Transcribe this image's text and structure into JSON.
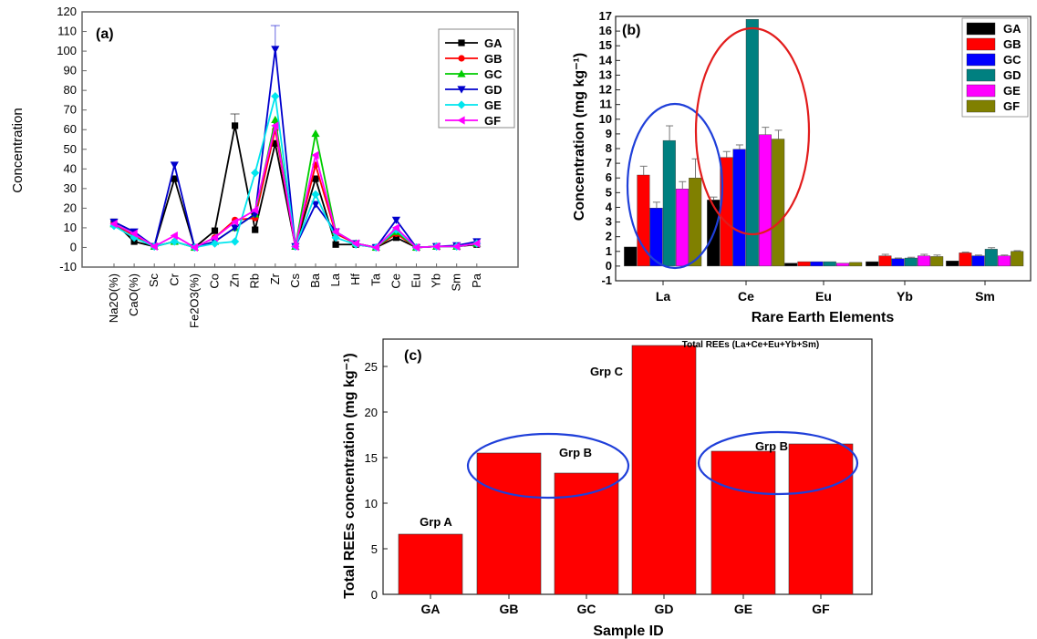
{
  "chart_data": [
    {
      "panel": "(a)",
      "type": "line",
      "title": "",
      "xlabel": "",
      "ylabel": "Concentration",
      "ylim": [
        -10,
        120
      ],
      "yticks": [
        -10,
        0,
        10,
        20,
        30,
        40,
        50,
        60,
        70,
        80,
        90,
        100,
        110,
        120
      ],
      "categories": [
        "Na2O(%)",
        "CaO(%)",
        "Sc",
        "Cr",
        "Fe2O3(%)",
        "Co",
        "Zn",
        "Rb",
        "Zr",
        "Cs",
        "Ba",
        "La",
        "Hf",
        "Ta",
        "Ce",
        "Eu",
        "Yb",
        "Sm",
        "Pa"
      ],
      "legend_position": "top-right",
      "series": [
        {
          "name": "GA",
          "color": "#000000",
          "marker": "square",
          "values": [
            13,
            3,
            0.5,
            35,
            0,
            8.5,
            62,
            9,
            53,
            0.5,
            35,
            1.5,
            1.5,
            0,
            5,
            0,
            0.5,
            0.5,
            1.5
          ]
        },
        {
          "name": "GB",
          "color": "#ff0000",
          "marker": "circle",
          "values": [
            12,
            6,
            0.5,
            3,
            0,
            5,
            14,
            15,
            60,
            0.5,
            42,
            7,
            2,
            0,
            7,
            0,
            0.5,
            0.5,
            2
          ]
        },
        {
          "name": "GC",
          "color": "#00cc00",
          "marker": "triangle-up",
          "values": [
            12,
            7,
            0.5,
            3,
            0,
            3,
            10,
            17,
            65,
            0.5,
            58,
            8,
            2,
            0,
            8,
            0,
            0.5,
            0.5,
            2
          ]
        },
        {
          "name": "GD",
          "color": "#0000cc",
          "marker": "triangle-down",
          "values": [
            13,
            8,
            0.5,
            42,
            0,
            3,
            10,
            17,
            101,
            0.5,
            22,
            8,
            2,
            0,
            14,
            0,
            0.5,
            1,
            3
          ]
        },
        {
          "name": "GE",
          "color": "#00e5ee",
          "marker": "diamond",
          "values": [
            11,
            5,
            0.5,
            3,
            0,
            2,
            3,
            38,
            77,
            0.5,
            27,
            5,
            1.5,
            0,
            9,
            0,
            0.5,
            0.5,
            2
          ]
        },
        {
          "name": "GF",
          "color": "#ff00ff",
          "marker": "triangle-left",
          "values": [
            12,
            7,
            0.5,
            6,
            0,
            5,
            13,
            19,
            62,
            0.5,
            47,
            8,
            2,
            0,
            10,
            0,
            0.5,
            0.5,
            2
          ]
        }
      ],
      "error_bars": [
        {
          "category": "Zn",
          "series": "GA",
          "upper": 68
        },
        {
          "category": "Zr",
          "series": "GD",
          "upper": 113
        }
      ]
    },
    {
      "panel": "(b)",
      "type": "bar",
      "title": "",
      "xlabel": "Rare Earth Elements",
      "ylabel": "Concentration (mg kg⁻¹)",
      "ylim": [
        -1,
        17
      ],
      "yticks": [
        -1,
        0,
        1,
        2,
        3,
        4,
        5,
        6,
        7,
        8,
        9,
        10,
        11,
        12,
        13,
        14,
        15,
        16,
        17
      ],
      "categories": [
        "La",
        "Ce",
        "Eu",
        "Yb",
        "Sm"
      ],
      "legend_position": "top-right",
      "series": [
        {
          "name": "GA",
          "color": "#000000",
          "values": [
            1.3,
            4.5,
            0.2,
            0.3,
            0.35
          ],
          "err": [
            0,
            0.2,
            0,
            0,
            0
          ]
        },
        {
          "name": "GB",
          "color": "#ff0000",
          "values": [
            6.2,
            7.4,
            0.3,
            0.7,
            0.9
          ],
          "err": [
            0.6,
            0.4,
            0,
            0.1,
            0.05
          ]
        },
        {
          "name": "GC",
          "color": "#0000ff",
          "values": [
            3.95,
            7.95,
            0.3,
            0.5,
            0.7
          ],
          "err": [
            0.4,
            0.3,
            0,
            0.05,
            0.05
          ]
        },
        {
          "name": "GD",
          "color": "#008080",
          "values": [
            8.55,
            16.8,
            0.3,
            0.55,
            1.15
          ],
          "err": [
            1.0,
            0,
            0,
            0.05,
            0.1
          ]
        },
        {
          "name": "GE",
          "color": "#ff00ff",
          "values": [
            5.25,
            8.95,
            0.2,
            0.7,
            0.7
          ],
          "err": [
            0.5,
            0.5,
            0,
            0.1,
            0.05
          ]
        },
        {
          "name": "GF",
          "color": "#808000",
          "values": [
            6.0,
            8.65,
            0.25,
            0.65,
            1.0
          ],
          "err": [
            1.3,
            0.6,
            0,
            0.1,
            0.05
          ]
        }
      ]
    },
    {
      "panel": "(c)",
      "type": "bar",
      "title": "",
      "xlabel": "Sample ID",
      "ylabel": "Total REEs concentration (mg kg⁻¹)",
      "ylim": [
        0,
        28
      ],
      "yticks": [
        0,
        5,
        10,
        15,
        20,
        25
      ],
      "categories": [
        "GA",
        "GB",
        "GC",
        "GD",
        "GE",
        "GF"
      ],
      "values": [
        6.6,
        15.5,
        13.3,
        27.3,
        15.7,
        16.5
      ],
      "color": "#ff0000",
      "annotations": [
        "Total REEs (La+Ce+Eu+Yb+Sm)",
        "Grp A",
        "Grp B",
        "Grp C",
        "Grp B"
      ]
    }
  ]
}
